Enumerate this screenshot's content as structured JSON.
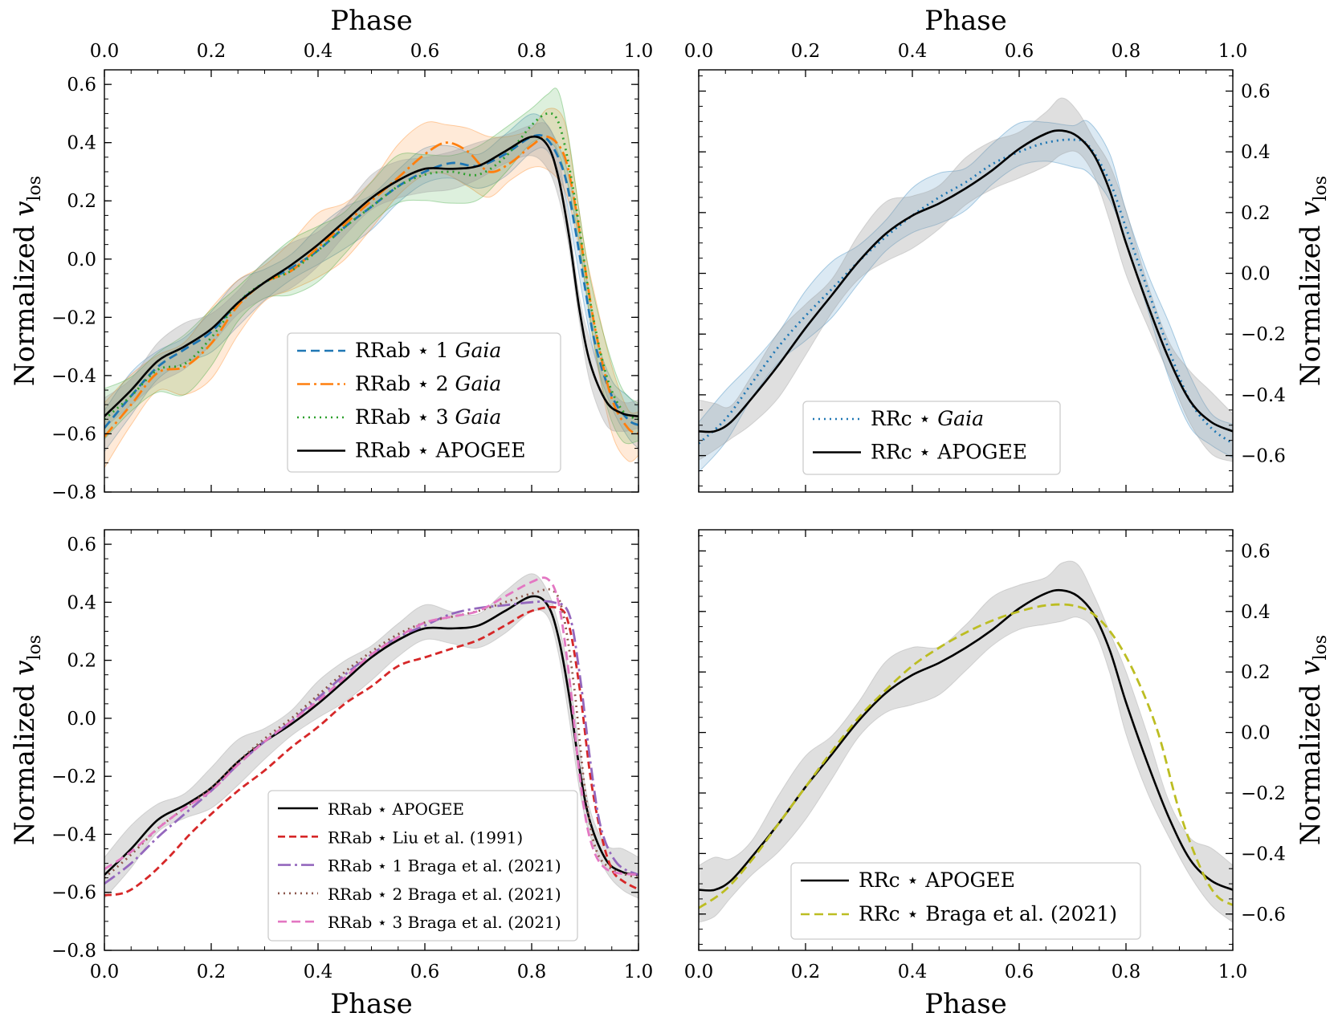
{
  "chart_data": [
    {
      "id": "top-left",
      "type": "line",
      "xlabel": "Phase",
      "ylabel": "Normalized v_los",
      "ylabel_main": "Normalized ",
      "ylabel_var": "v",
      "ylabel_sub": "los",
      "xlim": [
        0.0,
        1.0
      ],
      "ylim": [
        -0.8,
        0.65
      ],
      "xticks": [
        0.0,
        0.2,
        0.4,
        0.6,
        0.8,
        1.0
      ],
      "xtick_labels": [
        "0.0",
        "0.2",
        "0.4",
        "0.6",
        "0.8",
        "1.0"
      ],
      "yticks": [
        -0.8,
        -0.6,
        -0.4,
        -0.2,
        0.0,
        0.2,
        0.4,
        0.6
      ],
      "ytick_labels": [
        "−0.8",
        "−0.6",
        "−0.4",
        "−0.2",
        "0.0",
        "0.2",
        "0.4",
        "0.6"
      ],
      "legend_position": "lower-right",
      "series": [
        {
          "name": "RRab ⋆ 1 Gaia",
          "label": "RRab ⋆ 1 ",
          "label_italic": "Gaia",
          "color": "#1f77b4",
          "dash": "11,6",
          "x": [
            0.0,
            0.05,
            0.1,
            0.15,
            0.2,
            0.25,
            0.3,
            0.35,
            0.4,
            0.45,
            0.5,
            0.55,
            0.6,
            0.65,
            0.7,
            0.75,
            0.8,
            0.83,
            0.86,
            0.88,
            0.9,
            0.92,
            0.95,
            0.98,
            1.0
          ],
          "y": [
            -0.58,
            -0.47,
            -0.37,
            -0.31,
            -0.25,
            -0.15,
            -0.08,
            -0.03,
            0.03,
            0.11,
            0.18,
            0.25,
            0.3,
            0.33,
            0.32,
            0.36,
            0.42,
            0.41,
            0.3,
            0.12,
            -0.1,
            -0.3,
            -0.47,
            -0.55,
            -0.57
          ],
          "band": 0.06
        },
        {
          "name": "RRab ⋆ 2 Gaia",
          "label": "RRab ⋆ 2 ",
          "label_italic": "Gaia",
          "color": "#ff7f0e",
          "dash": "16,5,3,5",
          "x": [
            0.0,
            0.05,
            0.1,
            0.15,
            0.2,
            0.25,
            0.3,
            0.35,
            0.4,
            0.45,
            0.5,
            0.55,
            0.6,
            0.64,
            0.68,
            0.72,
            0.76,
            0.8,
            0.83,
            0.86,
            0.88,
            0.9,
            0.92,
            0.95,
            0.98,
            1.0
          ],
          "y": [
            -0.61,
            -0.5,
            -0.39,
            -0.37,
            -0.29,
            -0.16,
            -0.08,
            -0.04,
            0.04,
            0.12,
            0.2,
            0.28,
            0.36,
            0.4,
            0.37,
            0.3,
            0.33,
            0.39,
            0.42,
            0.36,
            0.2,
            -0.03,
            -0.25,
            -0.48,
            -0.58,
            -0.6
          ],
          "band": 0.09
        },
        {
          "name": "RRab ⋆ 3 Gaia",
          "label": "RRab ⋆ 3 ",
          "label_italic": "Gaia",
          "color": "#2ca02c",
          "dash": "2,5",
          "x": [
            0.0,
            0.05,
            0.1,
            0.15,
            0.2,
            0.25,
            0.3,
            0.35,
            0.4,
            0.45,
            0.5,
            0.55,
            0.6,
            0.65,
            0.7,
            0.75,
            0.8,
            0.83,
            0.85,
            0.87,
            0.89,
            0.91,
            0.94,
            0.97,
            1.0
          ],
          "y": [
            -0.55,
            -0.47,
            -0.38,
            -0.36,
            -0.27,
            -0.15,
            -0.08,
            -0.04,
            0.03,
            0.11,
            0.18,
            0.25,
            0.29,
            0.3,
            0.29,
            0.35,
            0.46,
            0.5,
            0.47,
            0.32,
            0.1,
            -0.15,
            -0.4,
            -0.52,
            -0.55
          ],
          "band": 0.08
        },
        {
          "name": "RRab ⋆ APOGEE",
          "label": "RRab ⋆ APOGEE",
          "label_italic": "",
          "color": "#000000",
          "dash": "",
          "x": [
            0.0,
            0.05,
            0.1,
            0.15,
            0.2,
            0.25,
            0.3,
            0.35,
            0.4,
            0.45,
            0.5,
            0.55,
            0.6,
            0.65,
            0.7,
            0.75,
            0.8,
            0.83,
            0.85,
            0.87,
            0.89,
            0.91,
            0.94,
            0.97,
            1.0
          ],
          "y": [
            -0.54,
            -0.45,
            -0.35,
            -0.3,
            -0.24,
            -0.15,
            -0.08,
            -0.02,
            0.05,
            0.13,
            0.21,
            0.27,
            0.31,
            0.31,
            0.32,
            0.37,
            0.42,
            0.39,
            0.28,
            0.08,
            -0.18,
            -0.36,
            -0.49,
            -0.53,
            -0.54
          ],
          "band": 0.06
        }
      ]
    },
    {
      "id": "top-right",
      "type": "line",
      "xlabel": "Phase",
      "ylabel": "Normalized v_los",
      "ylabel_main": "Normalized ",
      "ylabel_var": "v",
      "ylabel_sub": "los",
      "xlim": [
        0.0,
        1.0
      ],
      "ylim": [
        -0.72,
        0.67
      ],
      "xticks": [
        0.0,
        0.2,
        0.4,
        0.6,
        0.8,
        1.0
      ],
      "xtick_labels": [
        "0.0",
        "0.2",
        "0.4",
        "0.6",
        "0.8",
        "1.0"
      ],
      "yticks": [
        -0.6,
        -0.4,
        -0.2,
        0.0,
        0.2,
        0.4,
        0.6
      ],
      "ytick_labels": [
        "−0.6",
        "−0.4",
        "−0.2",
        "0.0",
        "0.2",
        "0.4",
        "0.6"
      ],
      "legend_position": "lower-center",
      "series": [
        {
          "name": "RRc ⋆ Gaia",
          "label": "RRc ⋆ ",
          "label_italic": "Gaia",
          "color": "#1f77b4",
          "dash": "2,5",
          "x": [
            0.0,
            0.05,
            0.1,
            0.15,
            0.2,
            0.25,
            0.3,
            0.35,
            0.4,
            0.45,
            0.5,
            0.55,
            0.6,
            0.65,
            0.7,
            0.73,
            0.77,
            0.8,
            0.84,
            0.88,
            0.92,
            0.96,
            1.0
          ],
          "y": [
            -0.56,
            -0.48,
            -0.36,
            -0.24,
            -0.14,
            -0.05,
            0.04,
            0.12,
            0.19,
            0.25,
            0.3,
            0.36,
            0.4,
            0.43,
            0.44,
            0.42,
            0.3,
            0.15,
            -0.05,
            -0.25,
            -0.42,
            -0.51,
            -0.56
          ],
          "band": 0.07
        },
        {
          "name": "RRc ⋆ APOGEE",
          "label": "RRc ⋆ APOGEE",
          "label_italic": "",
          "color": "#000000",
          "dash": "",
          "x": [
            0.0,
            0.03,
            0.06,
            0.1,
            0.15,
            0.2,
            0.25,
            0.3,
            0.35,
            0.4,
            0.45,
            0.5,
            0.55,
            0.6,
            0.65,
            0.68,
            0.71,
            0.74,
            0.77,
            0.8,
            0.84,
            0.88,
            0.92,
            0.96,
            1.0
          ],
          "y": [
            -0.52,
            -0.52,
            -0.49,
            -0.41,
            -0.3,
            -0.18,
            -0.07,
            0.04,
            0.13,
            0.19,
            0.23,
            0.28,
            0.34,
            0.41,
            0.46,
            0.47,
            0.45,
            0.39,
            0.27,
            0.1,
            -0.1,
            -0.28,
            -0.42,
            -0.49,
            -0.52
          ],
          "band": 0.08
        }
      ]
    },
    {
      "id": "bottom-left",
      "type": "line",
      "xlabel": "Phase",
      "ylabel": "Normalized v_los",
      "ylabel_main": "Normalized ",
      "ylabel_var": "v",
      "ylabel_sub": "los",
      "xlim": [
        0.0,
        1.0
      ],
      "ylim": [
        -0.8,
        0.65
      ],
      "xticks": [
        0.0,
        0.2,
        0.4,
        0.6,
        0.8,
        1.0
      ],
      "xtick_labels": [
        "0.0",
        "0.2",
        "0.4",
        "0.6",
        "0.8",
        "1.0"
      ],
      "yticks": [
        -0.8,
        -0.6,
        -0.4,
        -0.2,
        0.0,
        0.2,
        0.4,
        0.6
      ],
      "ytick_labels": [
        "−0.8",
        "−0.6",
        "−0.4",
        "−0.2",
        "0.0",
        "0.2",
        "0.4",
        "0.6"
      ],
      "legend_position": "lower-right",
      "series": [
        {
          "name": "RRab ⋆ APOGEE",
          "label": "RRab ⋆ APOGEE",
          "label_italic": "",
          "color": "#000000",
          "dash": "",
          "x": [
            0.0,
            0.05,
            0.1,
            0.15,
            0.2,
            0.25,
            0.3,
            0.35,
            0.4,
            0.45,
            0.5,
            0.55,
            0.6,
            0.65,
            0.7,
            0.75,
            0.8,
            0.83,
            0.85,
            0.87,
            0.89,
            0.91,
            0.94,
            0.97,
            1.0
          ],
          "y": [
            -0.54,
            -0.45,
            -0.35,
            -0.3,
            -0.24,
            -0.15,
            -0.08,
            -0.02,
            0.05,
            0.13,
            0.21,
            0.27,
            0.31,
            0.31,
            0.32,
            0.37,
            0.42,
            0.39,
            0.28,
            0.08,
            -0.18,
            -0.36,
            -0.49,
            -0.53,
            -0.54
          ],
          "band": 0.06
        },
        {
          "name": "RRab ⋆ Liu et al. (1991)",
          "label": "RRab ⋆ Liu et al. (1991)",
          "label_italic": "",
          "color": "#d62728",
          "dash": "9,5",
          "x": [
            0.0,
            0.04,
            0.08,
            0.12,
            0.16,
            0.2,
            0.25,
            0.3,
            0.35,
            0.4,
            0.45,
            0.5,
            0.55,
            0.6,
            0.65,
            0.7,
            0.75,
            0.8,
            0.85,
            0.87,
            0.89,
            0.91,
            0.93,
            0.95,
            0.97,
            1.0
          ],
          "y": [
            -0.61,
            -0.6,
            -0.55,
            -0.48,
            -0.4,
            -0.33,
            -0.25,
            -0.18,
            -0.1,
            -0.03,
            0.05,
            0.11,
            0.18,
            0.21,
            0.24,
            0.27,
            0.32,
            0.37,
            0.38,
            0.32,
            0.1,
            -0.2,
            -0.4,
            -0.52,
            -0.56,
            -0.59
          ],
          "band": 0
        },
        {
          "name": "RRab ⋆ 1 Braga et al. (2021)",
          "label": "RRab ⋆ 1 Braga et al. (2021)",
          "label_italic": "",
          "color": "#9467bd",
          "dash": "16,5,3,5",
          "x": [
            0.0,
            0.05,
            0.1,
            0.15,
            0.2,
            0.25,
            0.3,
            0.35,
            0.4,
            0.45,
            0.5,
            0.55,
            0.6,
            0.65,
            0.7,
            0.75,
            0.8,
            0.84,
            0.87,
            0.89,
            0.91,
            0.93,
            0.96,
            1.0
          ],
          "y": [
            -0.57,
            -0.5,
            -0.41,
            -0.33,
            -0.25,
            -0.16,
            -0.08,
            -0.01,
            0.07,
            0.15,
            0.22,
            0.28,
            0.32,
            0.36,
            0.38,
            0.39,
            0.4,
            0.4,
            0.36,
            0.15,
            -0.15,
            -0.38,
            -0.5,
            -0.54
          ],
          "band": 0
        },
        {
          "name": "RRab ⋆ 2 Braga et al. (2021)",
          "label": "RRab ⋆ 2 Braga et al. (2021)",
          "label_italic": "",
          "color": "#8c564b",
          "dash": "2,5",
          "x": [
            0.0,
            0.05,
            0.1,
            0.15,
            0.2,
            0.25,
            0.3,
            0.35,
            0.4,
            0.45,
            0.5,
            0.55,
            0.6,
            0.65,
            0.7,
            0.75,
            0.8,
            0.84,
            0.86,
            0.88,
            0.9,
            0.92,
            0.95,
            1.0
          ],
          "y": [
            -0.55,
            -0.47,
            -0.38,
            -0.31,
            -0.24,
            -0.15,
            -0.07,
            0.0,
            0.08,
            0.16,
            0.23,
            0.29,
            0.33,
            0.35,
            0.37,
            0.4,
            0.43,
            0.44,
            0.35,
            0.1,
            -0.25,
            -0.45,
            -0.52,
            -0.55
          ],
          "band": 0
        },
        {
          "name": "RRab ⋆ 3 Braga et al. (2021)",
          "label": "RRab ⋆ 3 Braga et al. (2021)",
          "label_italic": "",
          "color": "#e377c2",
          "dash": "11,6",
          "x": [
            0.0,
            0.05,
            0.1,
            0.15,
            0.2,
            0.25,
            0.3,
            0.35,
            0.4,
            0.45,
            0.5,
            0.55,
            0.6,
            0.65,
            0.7,
            0.75,
            0.8,
            0.83,
            0.85,
            0.87,
            0.89,
            0.91,
            0.94,
            1.0
          ],
          "y": [
            -0.52,
            -0.46,
            -0.38,
            -0.31,
            -0.25,
            -0.16,
            -0.08,
            -0.01,
            0.06,
            0.14,
            0.22,
            0.28,
            0.33,
            0.35,
            0.37,
            0.42,
            0.47,
            0.48,
            0.4,
            0.15,
            -0.2,
            -0.42,
            -0.52,
            -0.54
          ],
          "band": 0
        }
      ]
    },
    {
      "id": "bottom-right",
      "type": "line",
      "xlabel": "Phase",
      "ylabel": "Normalized v_los",
      "ylabel_main": "Normalized ",
      "ylabel_var": "v",
      "ylabel_sub": "los",
      "xlim": [
        0.0,
        1.0
      ],
      "ylim": [
        -0.72,
        0.67
      ],
      "xticks": [
        0.0,
        0.2,
        0.4,
        0.6,
        0.8,
        1.0
      ],
      "xtick_labels": [
        "0.0",
        "0.2",
        "0.4",
        "0.6",
        "0.8",
        "1.0"
      ],
      "yticks": [
        -0.6,
        -0.4,
        -0.2,
        0.0,
        0.2,
        0.4,
        0.6
      ],
      "ytick_labels": [
        "−0.6",
        "−0.4",
        "−0.2",
        "0.0",
        "0.2",
        "0.4",
        "0.6"
      ],
      "legend_position": "lower-center",
      "series": [
        {
          "name": "RRc ⋆ APOGEE",
          "label": "RRc ⋆ APOGEE",
          "label_italic": "",
          "color": "#000000",
          "dash": "",
          "x": [
            0.0,
            0.03,
            0.06,
            0.1,
            0.15,
            0.2,
            0.25,
            0.3,
            0.35,
            0.4,
            0.45,
            0.5,
            0.55,
            0.6,
            0.65,
            0.68,
            0.71,
            0.74,
            0.77,
            0.8,
            0.84,
            0.88,
            0.92,
            0.96,
            1.0
          ],
          "y": [
            -0.52,
            -0.52,
            -0.49,
            -0.41,
            -0.3,
            -0.18,
            -0.07,
            0.04,
            0.13,
            0.19,
            0.23,
            0.28,
            0.34,
            0.41,
            0.46,
            0.47,
            0.45,
            0.39,
            0.27,
            0.1,
            -0.1,
            -0.28,
            -0.42,
            -0.49,
            -0.52
          ],
          "band": 0.08
        },
        {
          "name": "RRc ⋆ Braga et al. (2021)",
          "label": "RRc ⋆ Braga et al. (2021)",
          "label_italic": "",
          "color": "#bcbd22",
          "dash": "11,6",
          "x": [
            0.0,
            0.05,
            0.1,
            0.15,
            0.2,
            0.25,
            0.3,
            0.35,
            0.4,
            0.45,
            0.5,
            0.55,
            0.6,
            0.65,
            0.7,
            0.74,
            0.78,
            0.82,
            0.86,
            0.9,
            0.94,
            0.97,
            1.0
          ],
          "y": [
            -0.58,
            -0.52,
            -0.42,
            -0.3,
            -0.18,
            -0.06,
            0.05,
            0.14,
            0.22,
            0.28,
            0.33,
            0.37,
            0.4,
            0.42,
            0.42,
            0.39,
            0.31,
            0.18,
            0.0,
            -0.26,
            -0.45,
            -0.54,
            -0.57
          ],
          "band": 0
        }
      ]
    }
  ]
}
